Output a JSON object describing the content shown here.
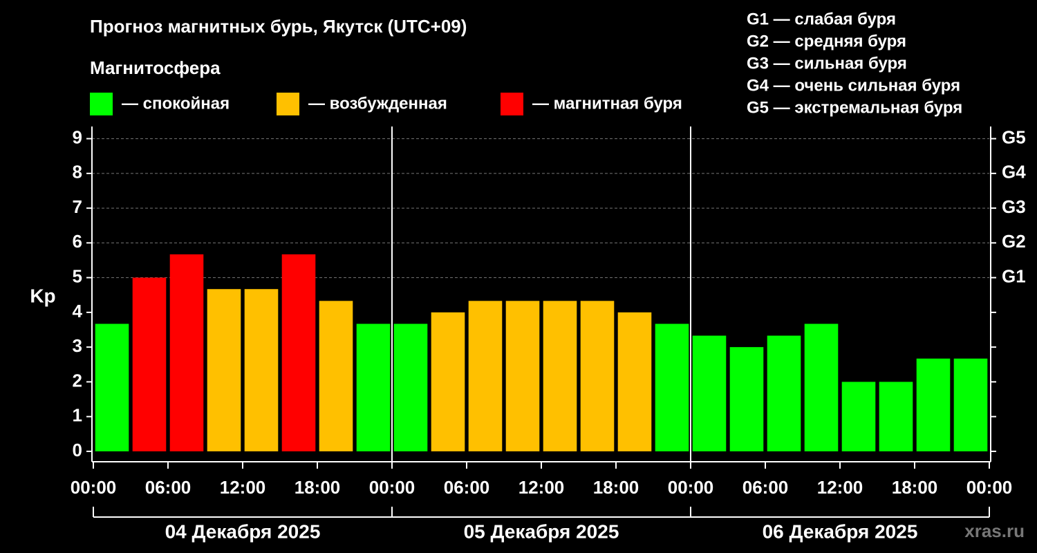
{
  "chart_data": {
    "type": "histogram",
    "title": "Прогноз магнитных бурь, Якутск (UTC+09)",
    "subtitle": "Магнитосфера",
    "ylabel": "Kp",
    "legend": [
      {
        "name": "— спокойная",
        "color": "#00ff00"
      },
      {
        "name": "— возбужденная",
        "color": "#ffc000"
      },
      {
        "name": "— магнитная буря",
        "color": "#ff0000"
      }
    ],
    "scale_legend": [
      "G1 — слабая буря",
      "G2 — средняя буря",
      "G3 — сильная буря",
      "G4 — очень сильная буря",
      "G5 — экстремальная буря"
    ],
    "bins": [
      0,
      3,
      6,
      9,
      12,
      15,
      18,
      21,
      24,
      27,
      30,
      33,
      36,
      39,
      42,
      45,
      48,
      51,
      54,
      57,
      60,
      63,
      66,
      69,
      72
    ],
    "values": [
      3.67,
      5,
      5.67,
      4.67,
      4.67,
      5.67,
      4.33,
      3.67,
      3.67,
      4,
      4.33,
      4.33,
      4.33,
      4.33,
      4,
      3.67,
      3.33,
      3,
      3.33,
      3.67,
      2,
      2,
      2.67,
      2.67
    ],
    "colors": [
      "#00ff00",
      "#ff0000",
      "#ff0000",
      "#ffc000",
      "#ffc000",
      "#ff0000",
      "#ffc000",
      "#00ff00",
      "#00ff00",
      "#ffc000",
      "#ffc000",
      "#ffc000",
      "#ffc000",
      "#ffc000",
      "#ffc000",
      "#00ff00",
      "#00ff00",
      "#00ff00",
      "#00ff00",
      "#00ff00",
      "#00ff00",
      "#00ff00",
      "#00ff00",
      "#00ff00"
    ],
    "xlim": [
      0,
      72
    ],
    "xticks": [
      {
        "value": 0,
        "label": "00:00"
      },
      {
        "value": 6,
        "label": "06:00"
      },
      {
        "value": 12,
        "label": "12:00"
      },
      {
        "value": 18,
        "label": "18:00"
      },
      {
        "value": 24,
        "label": "00:00"
      },
      {
        "value": 30,
        "label": "06:00"
      },
      {
        "value": 36,
        "label": "12:00"
      },
      {
        "value": 42,
        "label": "18:00"
      },
      {
        "value": 48,
        "label": "00:00"
      },
      {
        "value": 54,
        "label": "06:00"
      },
      {
        "value": 60,
        "label": "12:00"
      },
      {
        "value": 66,
        "label": "18:00"
      },
      {
        "value": 72,
        "label": "00:00"
      }
    ],
    "days": [
      {
        "start": 0,
        "end": 24,
        "label": "04 Декабря 2025"
      },
      {
        "start": 24,
        "end": 48,
        "label": "05 Декабря 2025"
      },
      {
        "start": 48,
        "end": 72,
        "label": "06 Декабря 2025"
      }
    ],
    "ylim": [
      -0.3,
      9.35
    ],
    "yticks": [
      0,
      1,
      2,
      3,
      4,
      5,
      6,
      7,
      8,
      9
    ],
    "y2ticks": [
      {
        "value": 5,
        "label": "G1"
      },
      {
        "value": 6,
        "label": "G2"
      },
      {
        "value": 7,
        "label": "G3"
      },
      {
        "value": 8,
        "label": "G4"
      },
      {
        "value": 9,
        "label": "G5"
      }
    ],
    "grid": true,
    "watermark": "xras.ru"
  }
}
